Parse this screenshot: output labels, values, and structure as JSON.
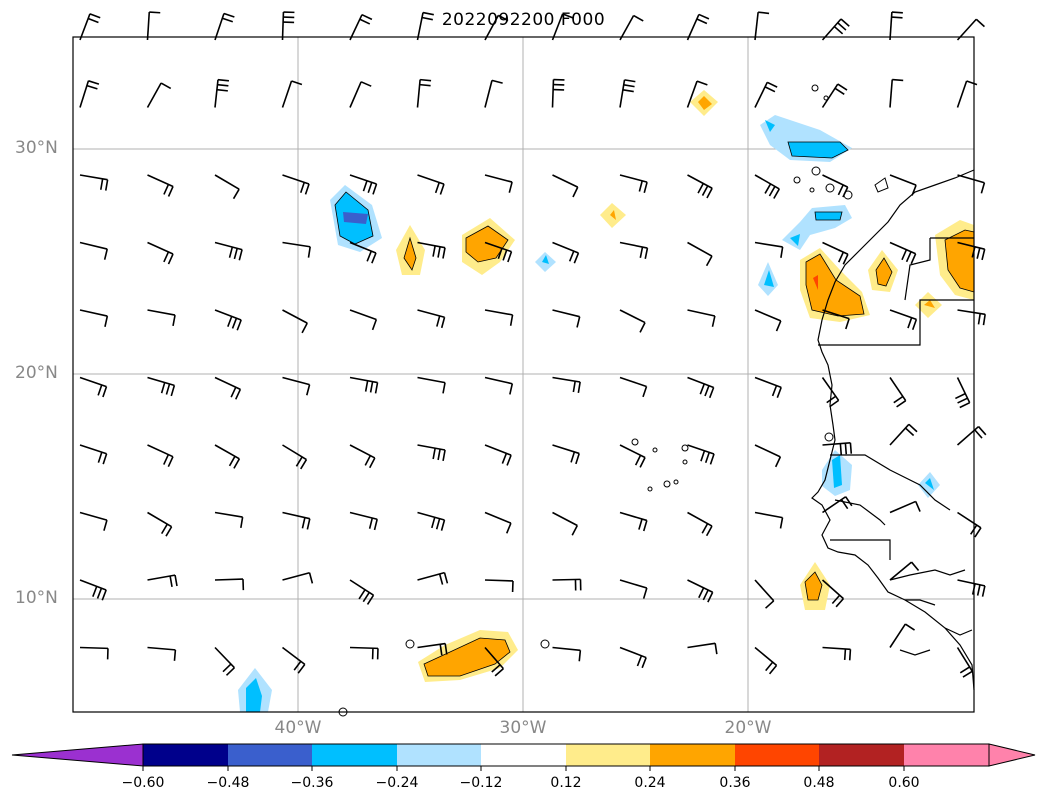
{
  "title": "2022092200 F000",
  "lat_labels": [
    "30°N",
    "20°N",
    "10°N"
  ],
  "lon_labels": [
    "40°W",
    "30°W",
    "20°W"
  ],
  "colorbar": {
    "ticks": [
      "−0.60",
      "−0.48",
      "−0.36",
      "−0.24",
      "−0.12",
      "0.12",
      "0.24",
      "0.36",
      "0.48",
      "0.60"
    ],
    "colors": [
      "#9b30d0",
      "#00008b",
      "#3a5fcd",
      "#00bfff",
      "#b0e2ff",
      "#ffffff",
      "#ffec8b",
      "#ffa500",
      "#ff4500",
      "#b22222",
      "#ff82ab"
    ]
  }
}
